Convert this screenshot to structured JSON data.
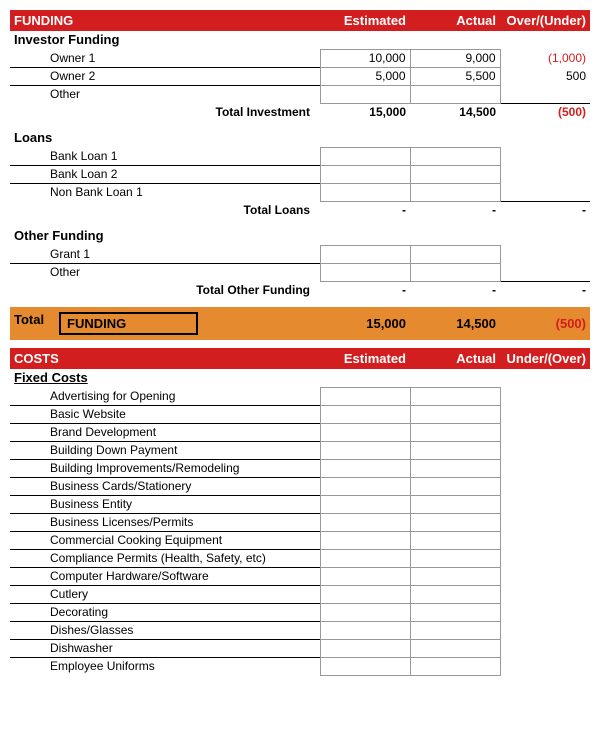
{
  "funding": {
    "header": {
      "title": "FUNDING",
      "est": "Estimated",
      "act": "Actual",
      "diff": "Over/(Under)"
    },
    "sections": [
      {
        "label": "Investor Funding",
        "rows": [
          {
            "label": "Owner 1",
            "est": "10,000",
            "act": "9,000",
            "diff": "(1,000)",
            "neg": true
          },
          {
            "label": "Owner 2",
            "est": "5,000",
            "act": "5,500",
            "diff": "500",
            "neg": false
          },
          {
            "label": "Other",
            "est": "",
            "act": "",
            "diff": "",
            "neg": false
          }
        ],
        "subtotal": {
          "label": "Total Investment",
          "est": "15,000",
          "act": "14,500",
          "diff": "(500)",
          "neg": true
        }
      },
      {
        "label": "Loans",
        "rows": [
          {
            "label": "Bank Loan 1",
            "est": "",
            "act": "",
            "diff": "",
            "neg": false
          },
          {
            "label": "Bank Loan 2",
            "est": "",
            "act": "",
            "diff": "",
            "neg": false
          },
          {
            "label": "Non Bank Loan 1",
            "est": "",
            "act": "",
            "diff": "",
            "neg": false
          }
        ],
        "subtotal": {
          "label": "Total Loans",
          "est": "-",
          "act": "-",
          "diff": "-",
          "neg": false
        }
      },
      {
        "label": "Other Funding",
        "rows": [
          {
            "label": "Grant 1",
            "est": "",
            "act": "",
            "diff": "",
            "neg": false
          },
          {
            "label": "Other",
            "est": "",
            "act": "",
            "diff": "",
            "neg": false
          }
        ],
        "subtotal": {
          "label": "Total Other Funding",
          "est": "-",
          "act": "-",
          "diff": "-",
          "neg": false
        }
      }
    ],
    "total": {
      "pre": "Total",
      "box": "FUNDING",
      "est": "15,000",
      "act": "14,500",
      "diff": "(500)"
    }
  },
  "costs": {
    "header": {
      "title": "COSTS",
      "est": "Estimated",
      "act": "Actual",
      "diff": "Under/(Over)"
    },
    "section_label": "Fixed Costs",
    "rows": [
      "Advertising for Opening",
      "Basic Website",
      "Brand Development",
      "Building Down Payment",
      "Building Improvements/Remodeling",
      "Business Cards/Stationery",
      "Business Entity",
      "Business Licenses/Permits",
      "Commercial Cooking Equipment",
      "Compliance Permits (Health, Safety, etc)",
      "Computer Hardware/Software",
      "Cutlery",
      "Decorating",
      "Dishes/Glasses",
      "Dishwasher",
      "Employee Uniforms"
    ]
  },
  "colors": {
    "header_bg": "#d21e1e",
    "header_text": "#ffffff",
    "total_bg": "#e58a2e",
    "negative": "#d21e1e",
    "border": "#999999"
  }
}
